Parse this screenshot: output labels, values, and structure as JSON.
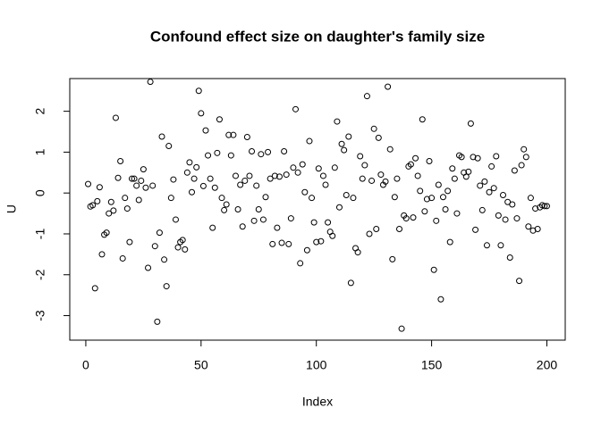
{
  "chart_data": {
    "type": "scatter",
    "title": "Confound effect size on daughter's family size",
    "x_label": "Index",
    "y_label": "U",
    "color": "#000000",
    "x": [
      1,
      2,
      3,
      4,
      5,
      6,
      7,
      8,
      9,
      10,
      11,
      12,
      13,
      14,
      15,
      16,
      17,
      18,
      19,
      20,
      21,
      22,
      23,
      24,
      25,
      26,
      27,
      28,
      29,
      30,
      31,
      32,
      33,
      34,
      35,
      36,
      37,
      38,
      39,
      40,
      41,
      42,
      43,
      44,
      45,
      46,
      47,
      48,
      49,
      50,
      51,
      52,
      53,
      54,
      55,
      56,
      57,
      58,
      59,
      60,
      61,
      62,
      63,
      64,
      65,
      66,
      67,
      68,
      69,
      70,
      71,
      72,
      73,
      74,
      75,
      76,
      77,
      78,
      79,
      80,
      81,
      82,
      83,
      84,
      85,
      86,
      87,
      88,
      89,
      90,
      91,
      92,
      93,
      94,
      95,
      96,
      97,
      98,
      99,
      100,
      101,
      102,
      103,
      104,
      105,
      106,
      107,
      108,
      109,
      110,
      111,
      112,
      113,
      114,
      115,
      116,
      117,
      118,
      119,
      120,
      121,
      122,
      123,
      124,
      125,
      126,
      127,
      128,
      129,
      130,
      131,
      132,
      133,
      134,
      135,
      136,
      137,
      138,
      139,
      140,
      141,
      142,
      143,
      144,
      145,
      146,
      147,
      148,
      149,
      150,
      151,
      152,
      153,
      154,
      155,
      156,
      157,
      158,
      159,
      160,
      161,
      162,
      163,
      164,
      165,
      166,
      167,
      168,
      169,
      170,
      171,
      172,
      173,
      174,
      175,
      176,
      177,
      178,
      179,
      180,
      181,
      182,
      183,
      184,
      185,
      186,
      187,
      188,
      189,
      190,
      191,
      192,
      193,
      194,
      195,
      196,
      197,
      198,
      199,
      200
    ],
    "values": [
      0.22,
      -0.33,
      -0.3,
      -2.33,
      -0.2,
      0.14,
      -1.5,
      -1.02,
      -0.97,
      -0.5,
      -0.22,
      -0.43,
      1.84,
      0.37,
      0.78,
      -1.6,
      -0.12,
      -0.38,
      -1.2,
      0.35,
      0.35,
      0.18,
      -0.17,
      0.3,
      0.58,
      0.13,
      -1.83,
      2.72,
      0.18,
      -1.3,
      -3.15,
      -0.97,
      1.38,
      -1.63,
      -2.28,
      1.15,
      -0.12,
      0.33,
      -0.65,
      -1.33,
      -1.2,
      -1.15,
      -1.38,
      0.5,
      0.75,
      0.02,
      0.35,
      0.63,
      2.5,
      1.95,
      0.17,
      1.53,
      0.92,
      0.35,
      -0.85,
      0.13,
      0.98,
      1.8,
      -0.12,
      -0.42,
      -0.28,
      1.42,
      0.92,
      1.42,
      0.42,
      -0.4,
      0.2,
      -0.82,
      0.3,
      1.37,
      0.42,
      1.02,
      -0.68,
      0.18,
      -0.4,
      0.95,
      -0.65,
      -0.1,
      1.0,
      0.35,
      -1.25,
      0.42,
      -0.85,
      0.4,
      -1.22,
      1.02,
      0.45,
      -1.25,
      -0.62,
      0.62,
      2.05,
      0.5,
      -1.72,
      0.7,
      0.02,
      -1.4,
      1.27,
      -0.12,
      -0.72,
      -1.2,
      0.6,
      -1.18,
      0.42,
      0.2,
      -0.72,
      -0.95,
      -1.05,
      0.62,
      1.75,
      -0.35,
      1.2,
      1.05,
      -0.05,
      1.38,
      -2.2,
      -0.12,
      -1.35,
      -1.45,
      0.9,
      0.35,
      0.68,
      2.37,
      -1.0,
      0.3,
      1.57,
      -0.88,
      1.35,
      0.45,
      0.2,
      0.28,
      2.6,
      1.07,
      -1.62,
      -0.1,
      0.35,
      -0.88,
      -3.32,
      -0.55,
      -0.62,
      0.65,
      0.7,
      -0.6,
      0.85,
      0.42,
      0.05,
      1.8,
      -0.45,
      -0.15,
      0.78,
      -0.12,
      -1.88,
      -0.68,
      0.2,
      -2.6,
      -0.1,
      -0.4,
      0.05,
      -1.2,
      0.6,
      0.35,
      -0.5,
      0.92,
      0.88,
      0.5,
      0.4,
      0.52,
      1.7,
      0.88,
      -0.9,
      0.85,
      0.18,
      -0.42,
      0.28,
      -1.28,
      0.02,
      0.65,
      0.12,
      0.9,
      -0.55,
      -1.28,
      -0.05,
      -0.65,
      -0.22,
      -1.58,
      -0.28,
      0.55,
      -0.62,
      -2.15,
      0.68,
      1.07,
      0.88,
      -0.82,
      -0.12,
      -0.92,
      -0.38,
      -0.88,
      -0.35,
      -0.3,
      -0.32,
      -0.32
    ],
    "xlim": [
      -6.96,
      207.96
    ],
    "ylim": [
      -3.6,
      2.8
    ],
    "xticks": [
      0,
      50,
      100,
      150,
      200
    ],
    "yticks": [
      -3,
      -2,
      -1,
      0,
      1,
      2
    ]
  }
}
